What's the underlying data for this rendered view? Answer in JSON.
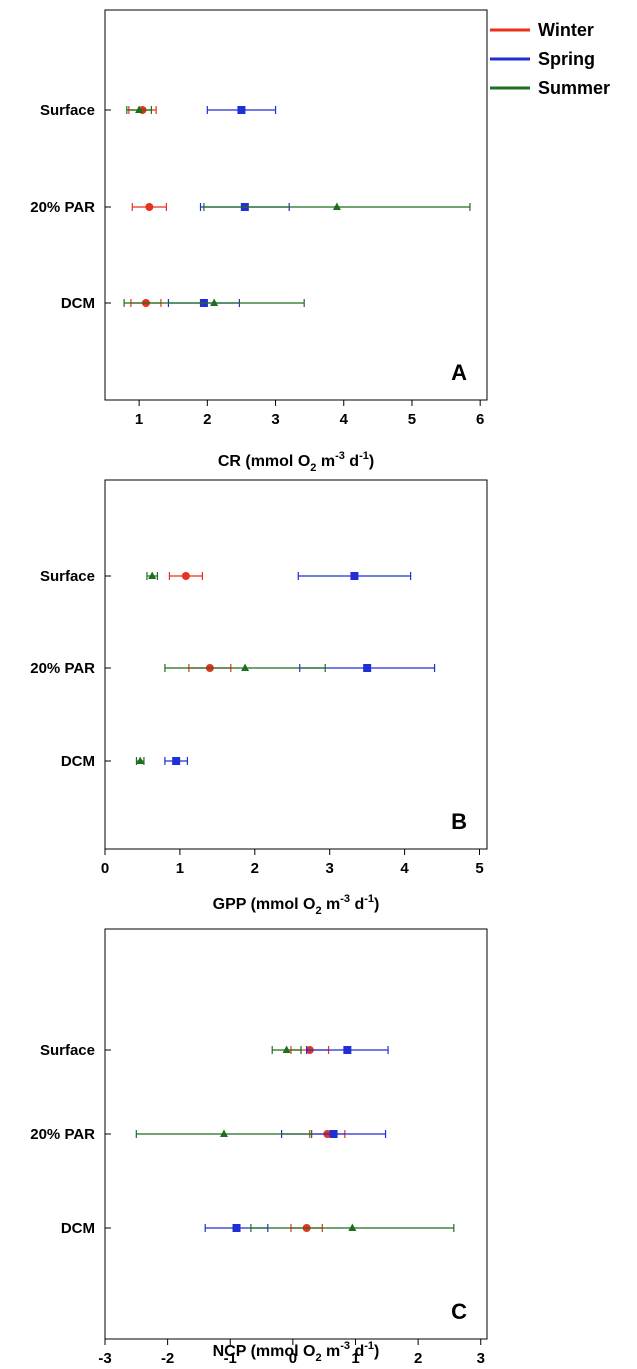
{
  "legend": [
    {
      "name": "Winter",
      "color": "#e8321e",
      "marker": "circle"
    },
    {
      "name": "Spring",
      "color": "#1f2fd4",
      "marker": "square"
    },
    {
      "name": "Summer",
      "color": "#1e6e1e",
      "marker": "triangle"
    }
  ],
  "chart_data": [
    {
      "type": "scatter",
      "panel_label": "A",
      "xlabel": {
        "main": "CR (mmol O",
        "sub": "2",
        "mid": " m",
        "sup1": "-3",
        "end": " d",
        "sup2": "-1",
        "close": ")"
      },
      "xlim": [
        0.5,
        6.1
      ],
      "xticks": [
        1,
        2,
        3,
        4,
        5,
        6
      ],
      "categories": [
        "Surface",
        "20% PAR",
        "DCM"
      ],
      "series": [
        {
          "name": "Winter",
          "values": [
            1.05,
            1.15,
            1.1
          ],
          "err": [
            0.2,
            0.25,
            0.22
          ]
        },
        {
          "name": "Spring",
          "values": [
            2.5,
            2.55,
            1.95
          ],
          "err": [
            0.5,
            0.65,
            0.52
          ]
        },
        {
          "name": "Summer",
          "values": [
            1.0,
            3.9,
            2.1
          ],
          "err": [
            0.18,
            1.95,
            1.32
          ]
        }
      ]
    },
    {
      "type": "scatter",
      "panel_label": "B",
      "xlabel": {
        "main": "GPP (mmol O",
        "sub": "2",
        "mid": " m",
        "sup1": "-3",
        "end": " d",
        "sup2": "-1",
        "close": ")"
      },
      "xlim": [
        0,
        5.1
      ],
      "xticks": [
        0,
        1,
        2,
        3,
        4,
        5
      ],
      "categories": [
        "Surface",
        "20% PAR",
        "DCM"
      ],
      "series": [
        {
          "name": "Winter",
          "values": [
            1.08,
            1.4,
            null
          ],
          "err": [
            0.22,
            0.28,
            null
          ]
        },
        {
          "name": "Spring",
          "values": [
            3.33,
            3.5,
            0.95
          ],
          "err": [
            0.75,
            0.9,
            0.15
          ]
        },
        {
          "name": "Summer",
          "values": [
            0.63,
            1.87,
            0.47
          ],
          "err": [
            0.07,
            1.07,
            0.05
          ]
        }
      ]
    },
    {
      "type": "scatter",
      "panel_label": "C",
      "xlabel": {
        "main": "NCP (mmol O",
        "sub": "2",
        "mid": " m",
        "sup1": "-3",
        "end": " d",
        "sup2": "-1",
        "close": ")"
      },
      "xlim": [
        -3,
        3.1
      ],
      "xticks": [
        -3,
        -2,
        -1,
        0,
        1,
        2,
        3
      ],
      "categories": [
        "Surface",
        "20% PAR",
        "DCM"
      ],
      "series": [
        {
          "name": "Winter",
          "values": [
            0.27,
            0.55,
            0.22
          ],
          "err": [
            0.3,
            0.28,
            0.25
          ]
        },
        {
          "name": "Spring",
          "values": [
            0.87,
            0.65,
            -0.9
          ],
          "err": [
            0.65,
            0.83,
            0.5
          ]
        },
        {
          "name": "Summer",
          "values": [
            -0.1,
            -1.1,
            0.95
          ],
          "err": [
            0.23,
            1.4,
            1.62
          ]
        }
      ]
    }
  ]
}
